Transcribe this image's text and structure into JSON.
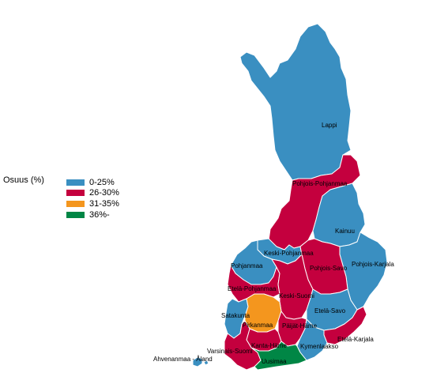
{
  "legend": {
    "title": "Osuus (%)",
    "items": [
      {
        "label": "0-25%",
        "color": "#3a8fc1"
      },
      {
        "label": "26-30%",
        "color": "#c4003e"
      },
      {
        "label": "31-35%",
        "color": "#f4961e"
      },
      {
        "label": "36%-",
        "color": "#008645"
      }
    ]
  },
  "regions": [
    {
      "name": "Lappi",
      "class": "0-25%"
    },
    {
      "name": "Pohjois-Pohjanmaa",
      "class": "26-30%"
    },
    {
      "name": "Kainuu",
      "class": "0-25%"
    },
    {
      "name": "Keski-Pohjanmaa",
      "class": "0-25%"
    },
    {
      "name": "Pohjanmaa",
      "class": "0-25%"
    },
    {
      "name": "Pohjois-Karjala",
      "class": "0-25%"
    },
    {
      "name": "Pohjois-Savo",
      "class": "26-30%"
    },
    {
      "name": "Etelä-Pohjanmaa",
      "class": "26-30%"
    },
    {
      "name": "Keski-Suomi",
      "class": "26-30%"
    },
    {
      "name": "Satakunta",
      "class": "0-25%"
    },
    {
      "name": "Etelä-Savo",
      "class": "0-25%"
    },
    {
      "name": "Pirkanmaa",
      "class": "31-35%"
    },
    {
      "name": "Päijät-Häme",
      "class": "26-30%"
    },
    {
      "name": "Etelä-Karjala",
      "class": "26-30%"
    },
    {
      "name": "Kanta-Häme",
      "class": "26-30%"
    },
    {
      "name": "Kymenlaakso",
      "class": "0-25%"
    },
    {
      "name": "Varsinais-Suomi",
      "class": "26-30%"
    },
    {
      "name": "Ahvenanmaa - Åland",
      "class": "0-25%"
    },
    {
      "name": "Uusimaa",
      "class": "36%-"
    }
  ],
  "label_text": {
    "Lappi": "Lappi",
    "Pohjois-Pohjanmaa": "Pohjois-Pohjanmaa",
    "Kainuu": "Kainuu",
    "Keski-Pohjanmaa": "Keski-Pohjanmaa",
    "Pohjanmaa": "Pohjanmaa",
    "Pohjois-Karjala": "Pohjois-Karjala",
    "Pohjois-Savo": "Pohjois-Savo",
    "Etelä-Pohjanmaa": "Etelä-Pohjanmaa",
    "Keski-Suomi": "Keski-Suomi",
    "Satakunta": "Satakunta",
    "Etelä-Savo": "Etelä-Savo",
    "Pirkanmaa": "Pirkanmaa",
    "Päijät-Häme": "Päijät-Häme",
    "Etelä-Karjala": "Etelä-Karjala",
    "Kanta-Häme": "Kanta-Häme",
    "Kymenlaakso": "Kymenlaakso",
    "Varsinais-Suomi": "Varsinais-Suomi",
    "Ahvenanmaa - Åland": "Ahvenanmaa - Åland",
    "Uusimaa": "Uusimaa"
  }
}
